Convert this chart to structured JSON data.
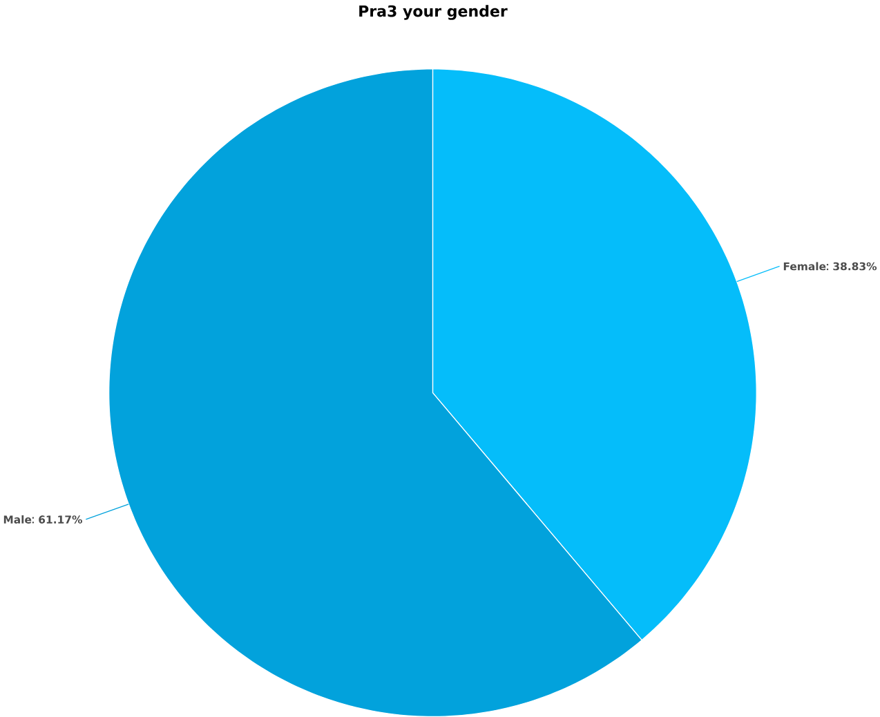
{
  "chart_data": {
    "type": "pie",
    "title": "Pra3 your gender",
    "categories": [
      "Female",
      "Male"
    ],
    "values": [
      38.83,
      61.17
    ],
    "colors": [
      "#05bdfa",
      "#02a2dc"
    ],
    "value_labels": [
      "38.83%",
      "61.17%"
    ]
  }
}
